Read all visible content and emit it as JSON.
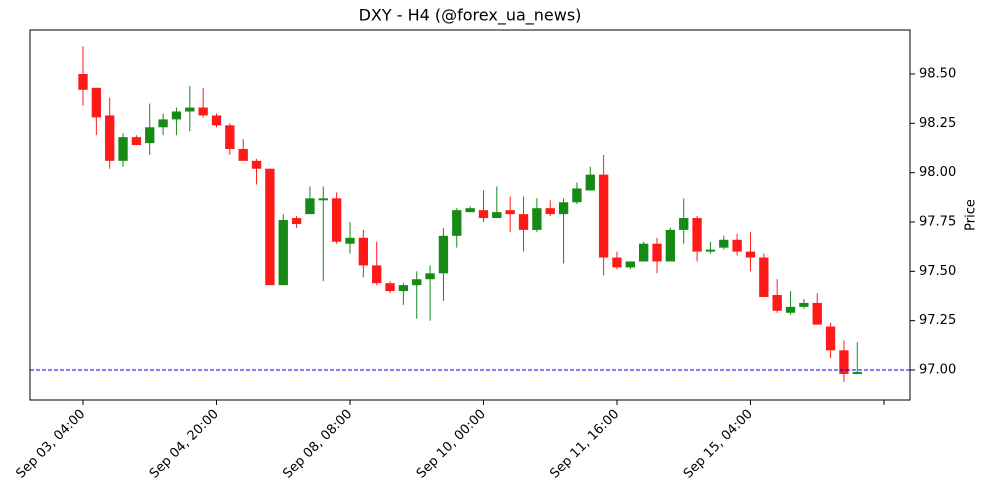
{
  "chart_data": {
    "type": "candlestick",
    "title": "DXY - H4 (@forex_ua_news)",
    "y_label": "Price",
    "open": [
      98.5,
      98.43,
      98.29,
      98.06,
      98.18,
      98.15,
      98.23,
      98.27,
      98.31,
      98.33,
      98.29,
      98.24,
      98.12,
      98.06,
      98.02,
      97.43,
      97.77,
      97.79,
      97.86,
      97.87,
      97.64,
      97.67,
      97.53,
      97.44,
      97.4,
      97.43,
      97.46,
      97.49,
      97.68,
      97.8,
      97.81,
      97.77,
      97.81,
      97.79,
      97.71,
      97.82,
      97.79,
      97.85,
      97.91,
      97.99,
      97.57,
      97.52,
      97.55,
      97.64,
      97.55,
      97.71,
      97.77,
      97.6,
      97.62,
      97.66,
      97.6,
      97.57,
      97.38,
      97.29,
      97.32,
      97.34,
      97.22,
      97.1,
      96.98
    ],
    "high": [
      98.64,
      98.43,
      98.38,
      98.2,
      98.19,
      98.35,
      98.3,
      98.33,
      98.44,
      98.43,
      98.3,
      98.25,
      98.17,
      98.07,
      98.02,
      97.79,
      97.78,
      97.93,
      97.93,
      97.9,
      97.75,
      97.71,
      97.65,
      97.45,
      97.44,
      97.5,
      97.53,
      97.72,
      97.82,
      97.83,
      97.91,
      97.93,
      97.88,
      97.88,
      97.87,
      97.86,
      97.87,
      97.95,
      98.03,
      98.09,
      97.6,
      97.55,
      97.65,
      97.67,
      97.72,
      97.87,
      97.78,
      97.65,
      97.68,
      97.69,
      97.7,
      97.59,
      97.46,
      97.4,
      97.36,
      97.39,
      97.24,
      97.15,
      97.14
    ],
    "low": [
      98.34,
      98.19,
      98.02,
      98.03,
      98.14,
      98.09,
      98.19,
      98.19,
      98.21,
      98.28,
      98.23,
      98.09,
      98.06,
      97.94,
      97.43,
      97.43,
      97.72,
      97.79,
      97.45,
      97.64,
      97.59,
      97.47,
      97.43,
      97.39,
      97.33,
      97.26,
      97.25,
      97.35,
      97.62,
      97.8,
      97.75,
      97.77,
      97.7,
      97.6,
      97.7,
      97.78,
      97.54,
      97.84,
      97.91,
      97.48,
      97.51,
      97.51,
      97.55,
      97.49,
      97.55,
      97.64,
      97.55,
      97.59,
      97.61,
      97.58,
      97.5,
      97.38,
      97.29,
      97.28,
      97.31,
      97.23,
      97.06,
      96.94,
      96.98
    ],
    "close": [
      98.42,
      98.28,
      98.06,
      98.18,
      98.14,
      98.23,
      98.27,
      98.31,
      98.33,
      98.29,
      98.24,
      98.12,
      98.06,
      98.02,
      97.43,
      97.76,
      97.74,
      97.87,
      97.87,
      97.65,
      97.67,
      97.53,
      97.44,
      97.4,
      97.43,
      97.46,
      97.49,
      97.68,
      97.81,
      97.82,
      97.77,
      97.8,
      97.79,
      97.71,
      97.82,
      97.79,
      97.85,
      97.92,
      97.99,
      97.57,
      97.52,
      97.55,
      97.64,
      97.55,
      97.71,
      97.77,
      97.6,
      97.61,
      97.66,
      97.6,
      97.57,
      97.37,
      97.3,
      97.32,
      97.34,
      97.23,
      97.1,
      96.98,
      96.99
    ],
    "up_color": "#168916",
    "down_color": "#ff1a1a",
    "xlim": [
      -3.97,
      61.95
    ],
    "xticks": [
      {
        "value": 0,
        "label": "Sep 03, 04:00"
      },
      {
        "value": 10,
        "label": "Sep 04, 20:00"
      },
      {
        "value": 20,
        "label": "Sep 08, 08:00"
      },
      {
        "value": 30,
        "label": "Sep 10, 00:00"
      },
      {
        "value": 40,
        "label": "Sep 11, 16:00"
      },
      {
        "value": 50,
        "label": "Sep 15, 04:00"
      },
      {
        "value": 60,
        "label": null
      }
    ],
    "ylim": [
      96.848,
      98.723
    ],
    "yticks": [
      {
        "value": 97,
        "label": "97.00"
      },
      {
        "value": 97.25,
        "label": "97.25"
      },
      {
        "value": 97.5,
        "label": "97.50"
      },
      {
        "value": 97.75,
        "label": "97.75"
      },
      {
        "value": 98,
        "label": "98.00"
      },
      {
        "value": 98.25,
        "label": "98.25"
      },
      {
        "value": 98.5,
        "label": "98.50"
      }
    ],
    "hline": {
      "value": 97,
      "color": "#0000ff",
      "style": "dashed"
    }
  }
}
